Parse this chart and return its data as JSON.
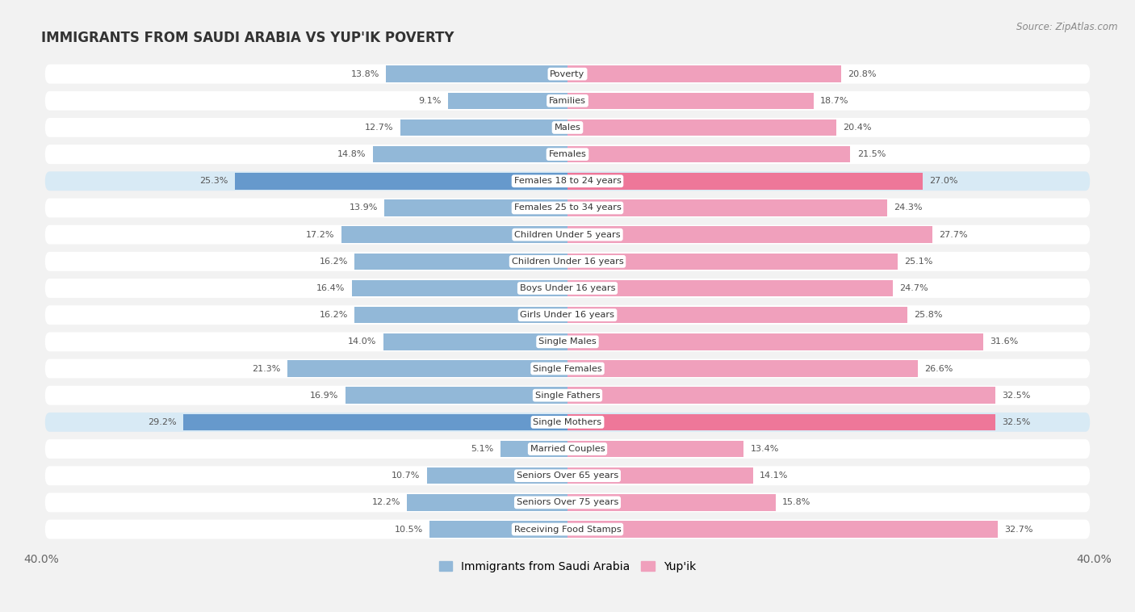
{
  "title": "IMMIGRANTS FROM SAUDI ARABIA VS YUP'IK POVERTY",
  "source": "Source: ZipAtlas.com",
  "categories": [
    "Poverty",
    "Families",
    "Males",
    "Females",
    "Females 18 to 24 years",
    "Females 25 to 34 years",
    "Children Under 5 years",
    "Children Under 16 years",
    "Boys Under 16 years",
    "Girls Under 16 years",
    "Single Males",
    "Single Females",
    "Single Fathers",
    "Single Mothers",
    "Married Couples",
    "Seniors Over 65 years",
    "Seniors Over 75 years",
    "Receiving Food Stamps"
  ],
  "left_values": [
    13.8,
    9.1,
    12.7,
    14.8,
    25.3,
    13.9,
    17.2,
    16.2,
    16.4,
    16.2,
    14.0,
    21.3,
    16.9,
    29.2,
    5.1,
    10.7,
    12.2,
    10.5
  ],
  "right_values": [
    20.8,
    18.7,
    20.4,
    21.5,
    27.0,
    24.3,
    27.7,
    25.1,
    24.7,
    25.8,
    31.6,
    26.6,
    32.5,
    32.5,
    13.4,
    14.1,
    15.8,
    32.7
  ],
  "left_color": "#92b8d8",
  "right_color": "#f0a0bc",
  "highlight_left_color": "#6699cc",
  "highlight_right_color": "#ee7799",
  "row_bg_color": "#f2f2f2",
  "row_pill_color": "#ffffff",
  "highlight_row_bg": "#e0ecf5",
  "highlight_row_pill": "#d8eaf5",
  "label_bg_color": "#ffffff",
  "text_color": "#555555",
  "title_color": "#333333",
  "xlim": 40.0,
  "legend_left": "Immigrants from Saudi Arabia",
  "legend_right": "Yup'ik",
  "bar_height": 0.62,
  "highlight_rows": [
    4,
    13
  ]
}
